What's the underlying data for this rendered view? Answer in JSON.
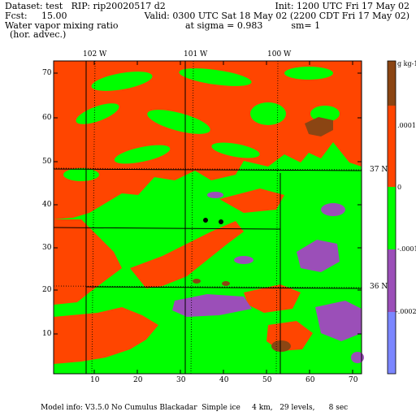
{
  "header": {
    "line1_left": "Dataset: test   RIP: rip20020517 d2",
    "line1_right": "Init: 1200 UTC Fri 17 May 02",
    "line2_left": "Fcst:     15.00",
    "line2_right": "Valid: 0300 UTC Sat 18 May 02 (2200 CDT Fri 17 May 02)",
    "line3_left": "Water vapor mixing ratio",
    "line3_right": "at sigma = 0.983          sm= 1",
    "line4_left": "(hor. advec.)"
  },
  "map": {
    "top_lon_labels": [
      "102 W",
      "101 W",
      "100 W"
    ],
    "right_lat_labels": [
      "37 N",
      "36 N"
    ],
    "y_ticks": [
      "70",
      "60",
      "50",
      "40",
      "30",
      "20",
      "10"
    ],
    "x_ticks": [
      "10",
      "20",
      "30",
      "40",
      "50",
      "60",
      "70"
    ]
  },
  "legend": {
    "unit_label": "g kg-1",
    "labels": [
      ".0001",
      "0",
      "-.0001",
      "-.0002"
    ],
    "bands": [
      {
        "color": "#8b4513"
      },
      {
        "color": "#ff4500"
      },
      {
        "color": "#00ff00"
      },
      {
        "color": "#9b4fb8"
      },
      {
        "color": "#7b86ff"
      }
    ]
  },
  "colors": {
    "brown": "#8b4513",
    "red": "#ff4500",
    "green": "#00ff00",
    "purple": "#9b4fb8",
    "blue": "#7b86ff"
  },
  "footer": {
    "model_info": "Model info: V3.5.0 No Cumulus Blackadar  Simple ice     4 km,   29 levels,      8 sec"
  }
}
